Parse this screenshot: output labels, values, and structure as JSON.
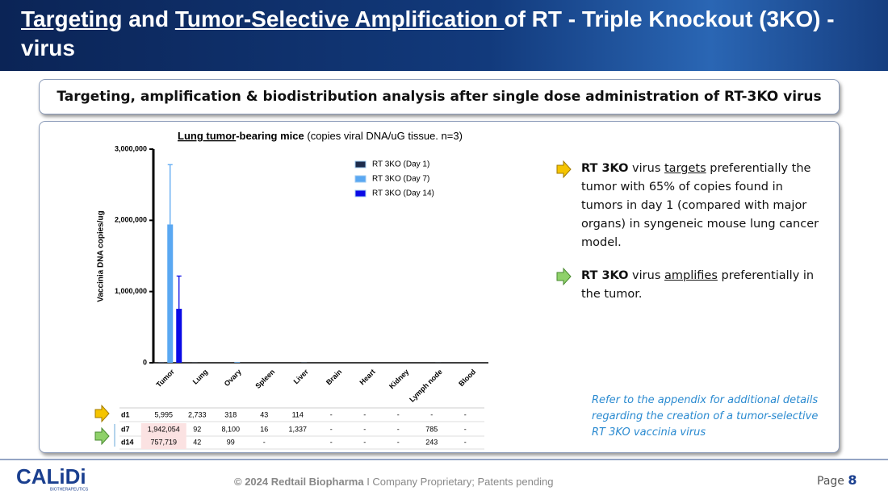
{
  "header": {
    "title_parts": [
      "Targeting",
      " and ",
      "Tumor-Selective Amplification ",
      "of  RT - Triple Knockout (3KO) - virus"
    ]
  },
  "banner": "Targeting, amplification & biodistribution analysis after single dose administration of RT-3KO virus",
  "chart_data": {
    "type": "bar",
    "title_parts": [
      "Lung tumor",
      "-bearing mice",
      " (copies viral DNA/uG tissue. n=3)"
    ],
    "y_label": "Vaccinia DNA copies/ug",
    "categories": [
      "Tumor",
      "Lung",
      "Ovary",
      "Spleen",
      "Liver",
      "Brain",
      "Heart",
      "Kidney",
      "Lymph node",
      "Blood"
    ],
    "series": [
      {
        "name": "RT 3KO (Day 1)",
        "short": "d1",
        "color": "#1c2b4c",
        "values": [
          5995,
          2733,
          318,
          43,
          114,
          null,
          null,
          null,
          null,
          null
        ],
        "value_labels": [
          "5,995",
          "2,733",
          "318",
          "43",
          "114",
          "-",
          "-",
          "-",
          "-",
          "-"
        ],
        "errors": [
          null,
          null,
          null,
          null,
          null,
          null,
          null,
          null,
          null,
          null
        ]
      },
      {
        "name": "RT 3KO (Day 7)",
        "short": "d7",
        "color": "#5aa8f2",
        "values": [
          1942054,
          92,
          8100,
          16,
          1337,
          null,
          null,
          null,
          785,
          null
        ],
        "value_labels": [
          "1,942,054",
          "92",
          "8,100",
          "16",
          "1,337",
          "-",
          "-",
          "-",
          "785",
          "-"
        ],
        "errors": [
          840000,
          null,
          null,
          null,
          null,
          null,
          null,
          null,
          null,
          null
        ]
      },
      {
        "name": "RT 3KO (Day 14)",
        "short": "d14",
        "color": "#0a0ae6",
        "values": [
          757719,
          42,
          99,
          null,
          null,
          null,
          null,
          null,
          243,
          null
        ],
        "value_labels": [
          "757,719",
          "42",
          "99",
          "-",
          null,
          "-",
          "-",
          "-",
          "243",
          "-"
        ],
        "errors": [
          460000,
          null,
          null,
          null,
          null,
          null,
          null,
          null,
          null,
          null
        ]
      }
    ],
    "ylim": [
      0,
      3000000
    ],
    "yticks": [
      0,
      {
        "value": 1000000,
        "label": "1,000,000"
      },
      {
        "value": 2000000,
        "label": "2,000,000"
      },
      {
        "value": 3000000,
        "label": "3,000,000"
      }
    ],
    "highlight": [
      [
        1,
        0
      ],
      [
        2,
        0
      ]
    ]
  },
  "bullets": [
    {
      "parts": [
        "RT 3KO",
        " virus ",
        "targets",
        " preferentially the tumor with 65% of copies found in tumors in day 1 (compared with major organs) in syngeneic mouse lung cancer model."
      ]
    },
    {
      "parts": [
        "RT 3KO",
        " virus ",
        "amplifies",
        " preferentially in the tumor."
      ]
    }
  ],
  "note": "Refer to the appendix for additional details regarding the creation of a tumor-selective RT 3KO vaccinia virus",
  "footer": {
    "logo": "CALiDi",
    "logo_sub": "BIOTHERAPEUTICS",
    "copyright": "© 2024 Redtail Biopharma",
    "notice": " I  Company Proprietary; Patents pending",
    "page_label": "Page ",
    "page": "8"
  }
}
